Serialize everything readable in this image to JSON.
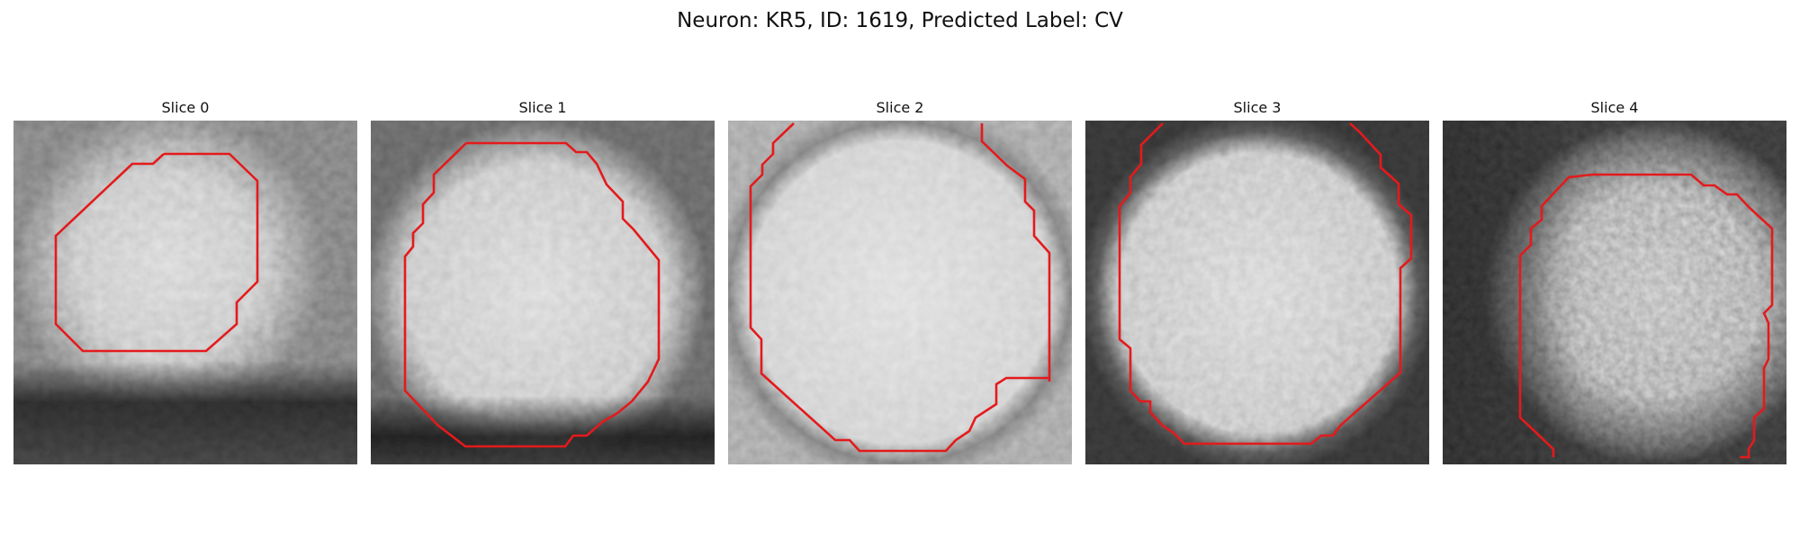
{
  "figure": {
    "title": "Neuron: KR5, ID: 1619, Predicted Label: CV"
  },
  "panels": [
    {
      "title": "Slice 0"
    },
    {
      "title": "Slice 1"
    },
    {
      "title": "Slice 2"
    },
    {
      "title": "Slice 3"
    },
    {
      "title": "Slice 4"
    }
  ],
  "colors": {
    "contour": "#e41a1c",
    "background": "#ffffff"
  }
}
